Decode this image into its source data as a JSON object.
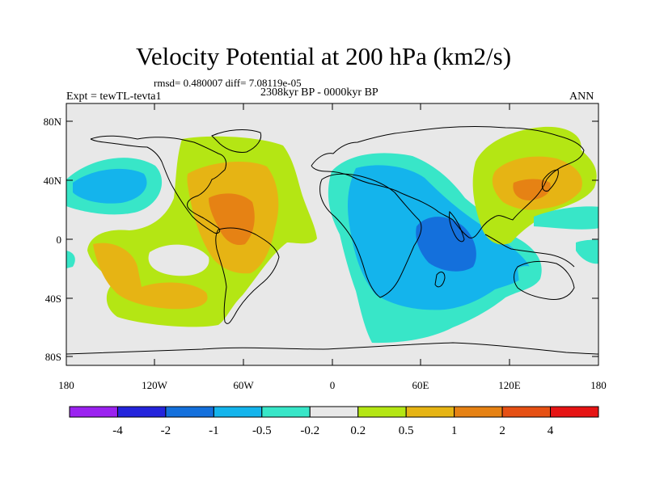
{
  "title": "Velocity Potential at 200 hPa (km2/s)",
  "stats": "rmsd= 0.480007 diff= 7.08119e-05",
  "expt": "Expt = tewTL-tevta1",
  "period": "2308kyr BP - 0000kyr BP",
  "season": "ANN",
  "lat_ticks": [
    "80N",
    "40N",
    "0",
    "40S",
    "80S"
  ],
  "lon_ticks": [
    "180",
    "120W",
    "60W",
    "0",
    "60E",
    "120E",
    "180"
  ],
  "colorbar": {
    "colors": [
      "#9b22f0",
      "#2424dc",
      "#1470dc",
      "#14b4ec",
      "#38e6c8",
      "#e8e8e8",
      "#b4e614",
      "#e6b414",
      "#e68214",
      "#e65014",
      "#e61414"
    ],
    "labels": [
      "-4",
      "-2",
      "-1",
      "-0.5",
      "-0.2",
      "0.2",
      "0.5",
      "1",
      "2",
      "4"
    ]
  },
  "legend_colors": {
    "lev_m1": "#1470dc",
    "lev_m05": "#14b4ec",
    "lev_m02": "#38e6c8",
    "lev_0": "#e8e8e8",
    "lev_p02": "#b4e614",
    "lev_p05": "#e6b414",
    "lev_p1": "#e68214",
    "lev_p2": "#e65014"
  }
}
